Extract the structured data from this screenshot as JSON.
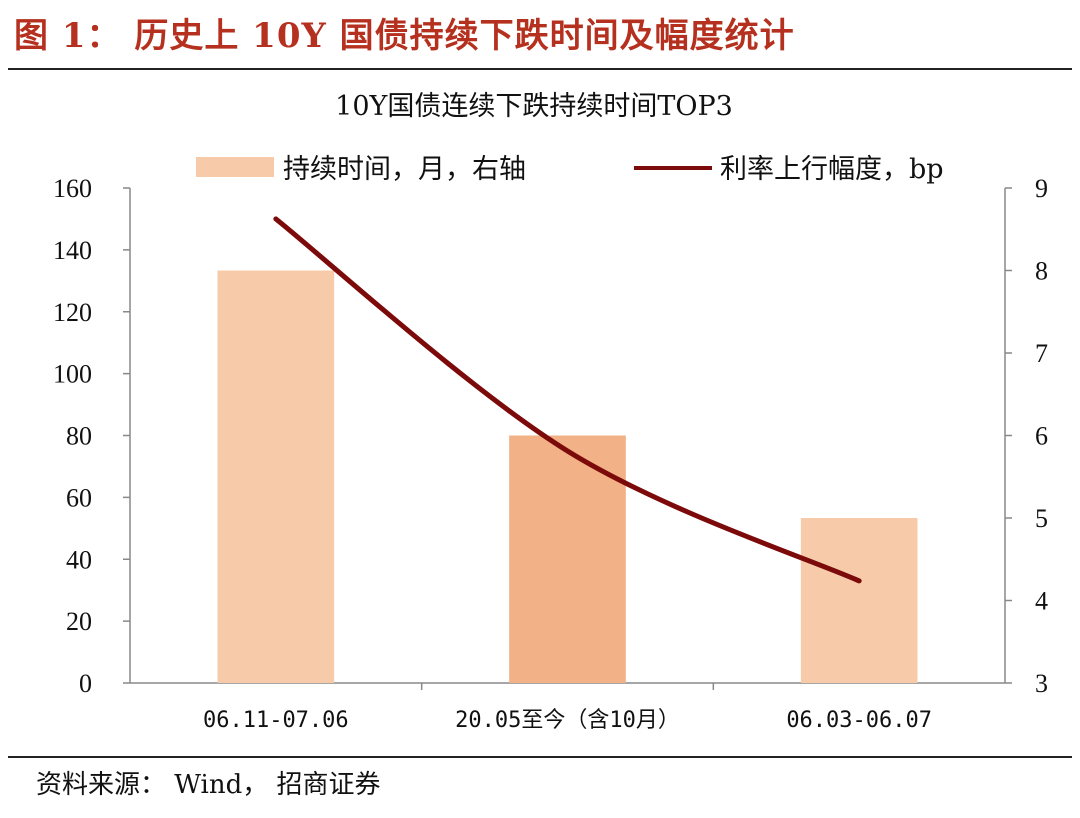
{
  "figure_title": "图 1： 历史上 10Y 国债持续下跌时间及幅度统计",
  "source_note": "资料来源： Wind， 招商证券",
  "colors": {
    "title": "#b5301e",
    "bar": "#f7cbaa",
    "bar_highlight": "#f2b187",
    "line": "#7c0a0a"
  },
  "chart_data": {
    "type": "bar",
    "title": "10Y国债连续下跌持续时间TOP3",
    "categories": [
      "06.11-07.06",
      "20.05至今（含10月）",
      "06.03-06.07"
    ],
    "series": [
      {
        "name": "持续时间，月，右轴",
        "type": "bar",
        "axis": "right",
        "values": [
          8,
          6,
          5
        ]
      },
      {
        "name": "利率上行幅度，bp",
        "type": "line",
        "axis": "left",
        "values": [
          150,
          75,
          33
        ]
      }
    ],
    "left_axis": {
      "ylim": [
        0,
        160
      ],
      "ticks": [
        "0",
        "20",
        "40",
        "60",
        "80",
        "100",
        "120",
        "140",
        "160"
      ]
    },
    "right_axis": {
      "ylim": [
        3,
        9
      ],
      "ticks": [
        "3",
        "4",
        "5",
        "6",
        "7",
        "8",
        "9"
      ]
    },
    "legend_position": "top",
    "grid": false
  }
}
